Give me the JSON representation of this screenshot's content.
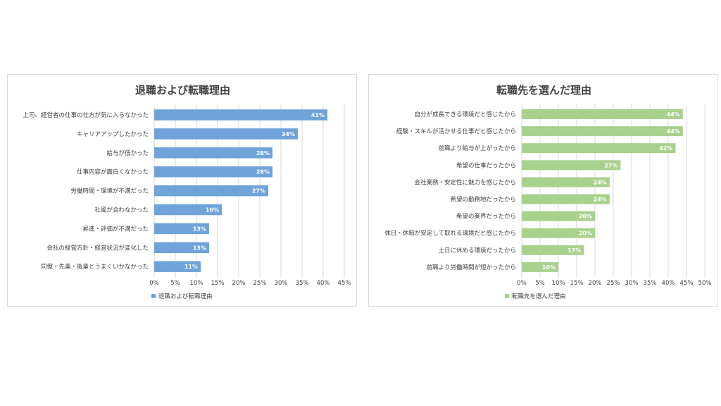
{
  "chart_data": [
    {
      "type": "bar",
      "orientation": "horizontal",
      "title": "退職および転職理由",
      "categories": [
        "上司、経営者の仕事の仕方が気に入らなかった",
        "キャリアアップしたかった",
        "給与が低かった",
        "仕事内容が面白くなかった",
        "労働時間・環境が不満だった",
        "社風が合わなかった",
        "昇進・評価が不満だった",
        "会社の経営方針・経営状況が変化した",
        "同僚・先輩・後輩とうまくいかなかった"
      ],
      "series": [
        {
          "name": "退職および転職理由",
          "values": [
            41,
            34,
            28,
            28,
            27,
            16,
            13,
            13,
            11
          ],
          "color": "#6fa3d9"
        }
      ],
      "value_labels": [
        "41%",
        "34%",
        "28%",
        "28%",
        "27%",
        "16%",
        "13%",
        "13%",
        "11%"
      ],
      "xlim": [
        0,
        45
      ],
      "x_ticks": [
        "0%",
        "5%",
        "10%",
        "15%",
        "20%",
        "25%",
        "30%",
        "35%",
        "40%",
        "45%"
      ],
      "grid": true,
      "legend": "bottom-left"
    },
    {
      "type": "bar",
      "orientation": "horizontal",
      "title": "転職先を選んだ理由",
      "categories": [
        "自分が成長できる環境だと感じたから",
        "経験・スキルが活かせる仕事だと感じたから",
        "前職より給与が上がったから",
        "希望の仕事だったから",
        "会社業務・安定性に魅力を感じたから",
        "希望の勤務地だったから",
        "希望の業界だったから",
        "休日・休暇が安定して取れる環境だと感じたから",
        "土日に休める環境だったから",
        "前職より労働時間が短かったから"
      ],
      "series": [
        {
          "name": "転職先を選んだ理由",
          "values": [
            44,
            44,
            42,
            27,
            24,
            24,
            20,
            20,
            17,
            10
          ],
          "color": "#a9d18e"
        }
      ],
      "value_labels": [
        "44%",
        "44%",
        "42%",
        "27%",
        "24%",
        "24%",
        "20%",
        "20%",
        "17%",
        "10%"
      ],
      "xlim": [
        0,
        50
      ],
      "x_ticks": [
        "0%",
        "5%",
        "10%",
        "15%",
        "20%",
        "25%",
        "30%",
        "35%",
        "40%",
        "45%",
        "50%"
      ],
      "grid": true,
      "legend": "bottom-left"
    }
  ]
}
